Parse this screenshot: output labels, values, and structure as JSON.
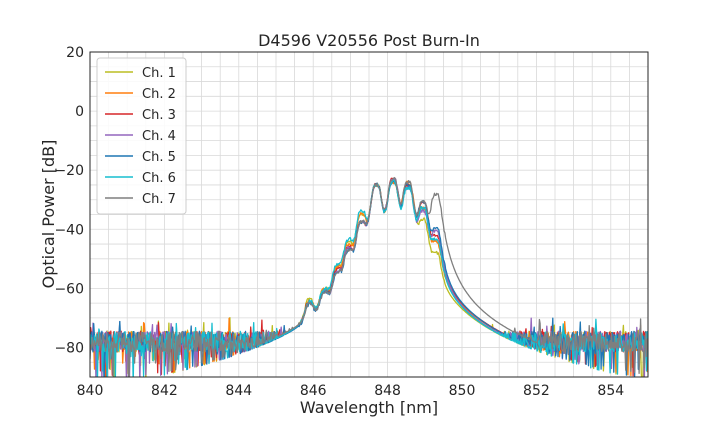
{
  "chart_data": {
    "type": "line",
    "title": "D4596 V20556 Post Burn-In",
    "xlabel": "Wavelength [nm]",
    "ylabel": "Optical Power [dB]",
    "xlim": [
      840,
      855
    ],
    "ylim": [
      -90,
      20
    ],
    "x_ticks": [
      840,
      842,
      844,
      846,
      848,
      850,
      852,
      854
    ],
    "y_ticks": [
      20,
      0,
      -20,
      -40,
      -60,
      -80
    ],
    "grid": true,
    "legend_position": "top-left",
    "noise_floor_db": -78,
    "series": [
      {
        "name": "Ch. 1",
        "color": "#bcbd22",
        "peaks": [
          [
            845.9,
            -65
          ],
          [
            846.3,
            -62
          ],
          [
            846.65,
            -54
          ],
          [
            846.95,
            -45
          ],
          [
            847.3,
            -35
          ],
          [
            847.7,
            -25
          ],
          [
            848.15,
            -24
          ],
          [
            848.55,
            -25
          ],
          [
            848.95,
            -37
          ],
          [
            849.3,
            -49
          ]
        ]
      },
      {
        "name": "Ch. 2",
        "color": "#ff7f0e",
        "peaks": [
          [
            845.9,
            -66
          ],
          [
            846.3,
            -62
          ],
          [
            846.65,
            -54
          ],
          [
            846.95,
            -46
          ],
          [
            847.3,
            -35
          ],
          [
            847.7,
            -25
          ],
          [
            848.15,
            -24
          ],
          [
            848.55,
            -24
          ],
          [
            848.95,
            -33
          ],
          [
            849.3,
            -45
          ]
        ]
      },
      {
        "name": "Ch. 3",
        "color": "#d62728",
        "peaks": [
          [
            845.9,
            -66
          ],
          [
            846.3,
            -63
          ],
          [
            846.65,
            -55
          ],
          [
            846.95,
            -47
          ],
          [
            847.3,
            -38
          ],
          [
            847.7,
            -25
          ],
          [
            848.15,
            -23
          ],
          [
            848.55,
            -25
          ],
          [
            848.95,
            -31
          ],
          [
            849.3,
            -43
          ]
        ]
      },
      {
        "name": "Ch. 4",
        "color": "#9467bd",
        "peaks": [
          [
            845.9,
            -66
          ],
          [
            846.3,
            -63
          ],
          [
            846.65,
            -56
          ],
          [
            846.95,
            -47
          ],
          [
            847.3,
            -38
          ],
          [
            847.7,
            -25
          ],
          [
            848.15,
            -23
          ],
          [
            848.55,
            -26
          ],
          [
            848.95,
            -34
          ],
          [
            849.3,
            -41
          ]
        ]
      },
      {
        "name": "Ch. 5",
        "color": "#1f77b4",
        "peaks": [
          [
            845.9,
            -67
          ],
          [
            846.3,
            -63
          ],
          [
            846.65,
            -56
          ],
          [
            846.95,
            -48
          ],
          [
            847.3,
            -38
          ],
          [
            847.7,
            -25
          ],
          [
            848.15,
            -24
          ],
          [
            848.55,
            -25
          ],
          [
            848.95,
            -31
          ],
          [
            849.3,
            -40
          ]
        ]
      },
      {
        "name": "Ch. 6",
        "color": "#17becf",
        "peaks": [
          [
            845.9,
            -66
          ],
          [
            846.3,
            -62
          ],
          [
            846.65,
            -53
          ],
          [
            846.95,
            -44
          ],
          [
            847.3,
            -34
          ],
          [
            847.7,
            -25
          ],
          [
            848.15,
            -24
          ],
          [
            848.55,
            -26
          ],
          [
            848.95,
            -33
          ],
          [
            849.3,
            -44
          ]
        ]
      },
      {
        "name": "Ch. 7",
        "color": "#7f7f7f",
        "peaks": [
          [
            845.9,
            -67
          ],
          [
            846.3,
            -64
          ],
          [
            846.65,
            -56
          ],
          [
            846.95,
            -48
          ],
          [
            847.3,
            -38
          ],
          [
            847.7,
            -25
          ],
          [
            848.15,
            -23
          ],
          [
            848.55,
            -24
          ],
          [
            848.95,
            -31
          ],
          [
            849.3,
            -28
          ]
        ]
      }
    ]
  }
}
